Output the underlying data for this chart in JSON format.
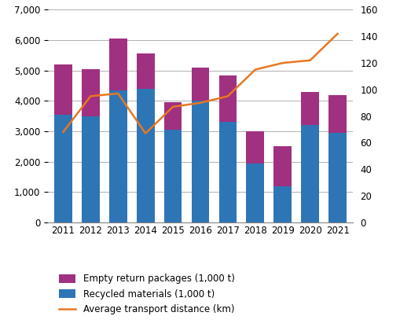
{
  "years": [
    2011,
    2012,
    2013,
    2014,
    2015,
    2016,
    2017,
    2018,
    2019,
    2020,
    2021
  ],
  "recycled_materials": [
    3550,
    3500,
    4350,
    4400,
    3050,
    4000,
    3300,
    1950,
    1200,
    3200,
    2950
  ],
  "empty_return_packages": [
    1650,
    1550,
    1700,
    1150,
    900,
    1100,
    1550,
    1050,
    1300,
    1100,
    1250
  ],
  "avg_transport_distance": [
    68,
    95,
    97,
    67,
    87,
    90,
    95,
    115,
    120,
    122,
    142
  ],
  "bar_color_recycled": "#2e75b6",
  "bar_color_empty": "#a03080",
  "line_color": "#e87722",
  "ylim_left": [
    0,
    7000
  ],
  "ylim_right": [
    0,
    160
  ],
  "yticks_left": [
    0,
    1000,
    2000,
    3000,
    4000,
    5000,
    6000,
    7000
  ],
  "yticks_right": [
    0,
    20,
    40,
    60,
    80,
    100,
    120,
    140,
    160
  ],
  "legend_labels": [
    "Empty return packages (1,000 t)",
    "Recycled materials (1,000 t)",
    "Average transport distance (km)"
  ],
  "grid_color": "#b0b0b0",
  "background_color": "#ffffff",
  "tick_fontsize": 8.5,
  "legend_fontsize": 8.5
}
